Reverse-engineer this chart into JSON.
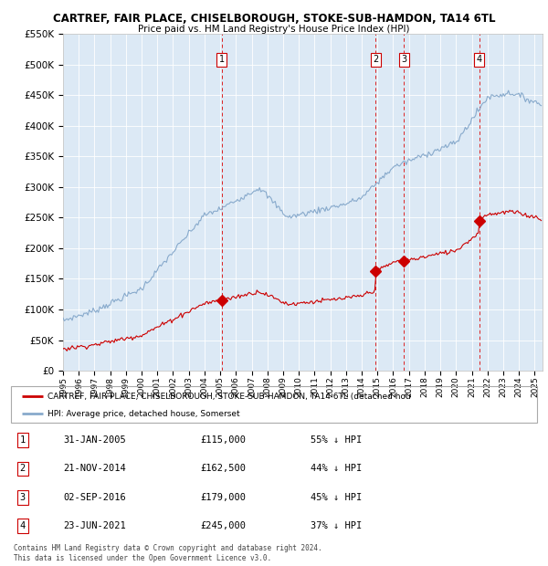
{
  "title": "CARTREF, FAIR PLACE, CHISELBOROUGH, STOKE-SUB-HAMDON, TA14 6TL",
  "subtitle": "Price paid vs. HM Land Registry's House Price Index (HPI)",
  "background_color": "#dce9f5",
  "ylim": [
    0,
    550000
  ],
  "yticks": [
    0,
    50000,
    100000,
    150000,
    200000,
    250000,
    300000,
    350000,
    400000,
    450000,
    500000,
    550000
  ],
  "sale_prices": [
    115000,
    162500,
    179000,
    245000
  ],
  "sale_labels": [
    "1",
    "2",
    "3",
    "4"
  ],
  "vline_color": "#dd2222",
  "sale_marker_color": "#cc0000",
  "red_line_color": "#cc0000",
  "blue_line_color": "#88aacc",
  "legend_red_label": "CARTREF, FAIR PLACE, CHISELBOROUGH, STOKE-SUB-HAMDON, TA14 6TL (detached hou",
  "legend_blue_label": "HPI: Average price, detached house, Somerset",
  "table_rows": [
    [
      "1",
      "31-JAN-2005",
      "£115,000",
      "55% ↓ HPI"
    ],
    [
      "2",
      "21-NOV-2014",
      "£162,500",
      "44% ↓ HPI"
    ],
    [
      "3",
      "02-SEP-2016",
      "£179,000",
      "45% ↓ HPI"
    ],
    [
      "4",
      "23-JUN-2021",
      "£245,000",
      "37% ↓ HPI"
    ]
  ],
  "footer": "Contains HM Land Registry data © Crown copyright and database right 2024.\nThis data is licensed under the Open Government Licence v3.0."
}
